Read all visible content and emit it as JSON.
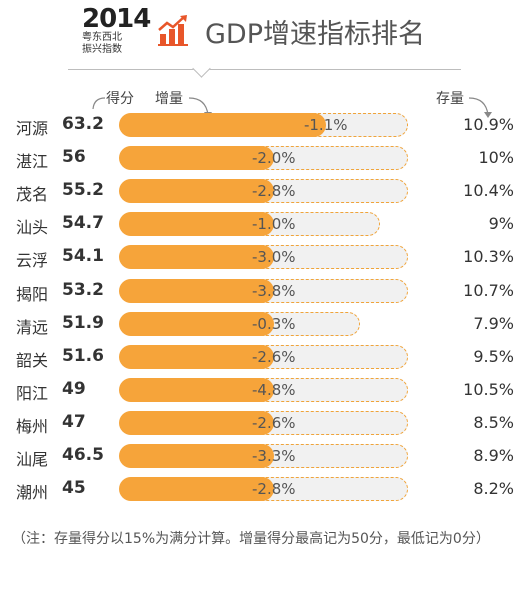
{
  "header": {
    "logo_year": "2014",
    "logo_line1": "粤东西北",
    "logo_line2": "振兴指数",
    "title": "GDP增速指标排名",
    "icon": "bar-chart-trend-icon",
    "accent_color": "#f6a43a"
  },
  "chart_data": {
    "type": "bar",
    "title": "GDP增速指标排名",
    "columns": {
      "score_label": "得分",
      "increment_label": "增量",
      "stock_label": "存量"
    },
    "categories": [
      "河源",
      "湛江",
      "茂名",
      "汕头",
      "云浮",
      "揭阳",
      "清远",
      "韶关",
      "阳江",
      "梅州",
      "汕尾",
      "潮州"
    ],
    "series": [
      {
        "name": "得分",
        "values": [
          63.2,
          56,
          55.2,
          54.7,
          54.1,
          53.2,
          51.9,
          51.6,
          49,
          47,
          46.5,
          45
        ]
      }
    ],
    "increment_labels": [
      "-1.1%",
      "-2.0%",
      "-2.8%",
      "-1.0%",
      "-3.0%",
      "-3.8%",
      "-0.3%",
      "-2.6%",
      "-4.8%",
      "-2.6%",
      "-3.3%",
      "-2.8%"
    ],
    "increment_values": [
      -1.1,
      -2.0,
      -2.8,
      -1.0,
      -3.0,
      -3.8,
      -0.3,
      -2.6,
      -4.8,
      -2.6,
      -3.3,
      -2.8
    ],
    "stock_labels": [
      "10.9%",
      "10%",
      "10.4%",
      "9%",
      "10.3%",
      "10.7%",
      "7.9%",
      "9.5%",
      "10.5%",
      "8.5%",
      "8.9%",
      "8.2%"
    ],
    "stock_values": [
      10.9,
      10,
      10.4,
      9,
      10.3,
      10.7,
      7.9,
      9.5,
      10.5,
      8.5,
      8.9,
      8.2
    ],
    "legend": "none",
    "grid": false
  },
  "footnote": "（注：存量得分以15%为满分计算。增量得分最高记为50分，最低记为0分）"
}
